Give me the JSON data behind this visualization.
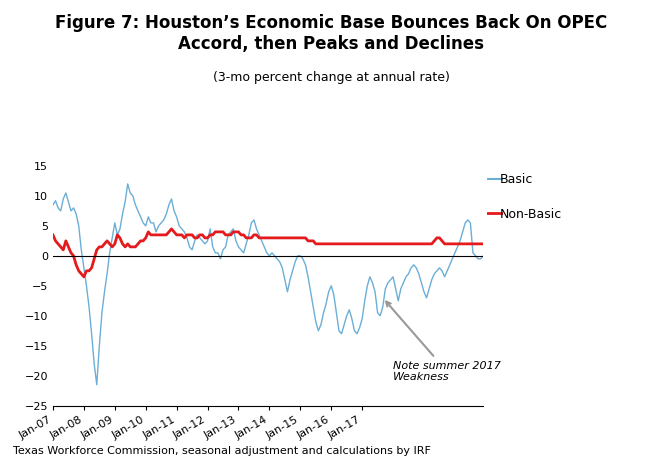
{
  "title": "Figure 7: Houston’s Economic Base Bounces Back On OPEC\nAccord, then Peaks and Declines",
  "subtitle": "(3-mo percent change at annual rate)",
  "footnote": "Texas Workforce Commission, seasonal adjustment and calculations by IRF",
  "annotation": "Note summer 2017\nWeakness",
  "ylim": [
    -25,
    15
  ],
  "yticks": [
    -25,
    -20,
    -15,
    -10,
    -5,
    0,
    5,
    10,
    15
  ],
  "basic_color": "#6baed6",
  "nonbasic_color": "#e41a1c",
  "arrow_color": "#999999",
  "background_color": "#ffffff",
  "basic_label": "Basic",
  "nonbasic_label": "Non-Basic",
  "x_tick_labels": [
    "Jan-07",
    "Jan-08",
    "Jan-09",
    "Jan-10",
    "Jan-11",
    "Jan-12",
    "Jan-13",
    "Jan-14",
    "Jan-15",
    "Jan-16",
    "Jan-17"
  ],
  "basic": [
    8.5,
    9.2,
    8.0,
    7.5,
    9.5,
    10.5,
    9.0,
    7.5,
    8.0,
    7.0,
    5.0,
    1.0,
    -2.0,
    -5.0,
    -8.5,
    -13.0,
    -18.0,
    -21.5,
    -15.0,
    -9.5,
    -6.0,
    -3.0,
    0.5,
    3.0,
    5.5,
    3.5,
    4.5,
    7.0,
    9.0,
    12.0,
    10.5,
    10.0,
    8.5,
    7.5,
    6.5,
    5.5,
    5.0,
    6.5,
    5.5,
    5.5,
    4.0,
    5.0,
    5.5,
    6.0,
    7.0,
    8.5,
    9.5,
    7.5,
    6.5,
    5.0,
    4.5,
    4.0,
    3.0,
    1.5,
    1.0,
    2.5,
    3.5,
    3.0,
    2.5,
    2.0,
    2.5,
    4.5,
    1.5,
    0.5,
    0.5,
    -0.5,
    1.0,
    1.5,
    3.5,
    4.0,
    4.5,
    2.5,
    1.5,
    1.0,
    0.5,
    2.0,
    3.5,
    5.5,
    6.0,
    4.5,
    3.5,
    2.5,
    1.5,
    0.5,
    0.0,
    0.5,
    0.0,
    -0.5,
    -1.0,
    -2.0,
    -4.0,
    -6.0,
    -4.0,
    -2.5,
    -1.0,
    0.0,
    0.0,
    -0.5,
    -1.5,
    -3.5,
    -6.0,
    -8.5,
    -11.0,
    -12.5,
    -11.5,
    -9.5,
    -8.0,
    -6.0,
    -5.0,
    -6.5,
    -9.5,
    -12.5,
    -13.0,
    -11.5,
    -10.0,
    -9.0,
    -10.5,
    -12.5,
    -13.0,
    -12.0,
    -10.5,
    -7.5,
    -5.0,
    -3.5,
    -4.5,
    -6.0,
    -9.5,
    -10.0,
    -8.5,
    -5.5,
    -4.5,
    -4.0,
    -3.5,
    -5.5,
    -7.5,
    -5.5,
    -4.5,
    -3.5,
    -3.0,
    -2.0,
    -1.5,
    -2.0,
    -3.0,
    -4.5,
    -6.0,
    -7.0,
    -5.5,
    -4.0,
    -3.0,
    -2.5,
    -2.0,
    -2.5,
    -3.5,
    -2.5,
    -1.5,
    -0.5,
    0.5,
    1.5,
    2.5,
    4.0,
    5.5,
    6.0,
    5.5,
    0.5,
    0.0,
    -0.5,
    -0.5,
    0.0
  ],
  "nonbasic": [
    3.5,
    2.5,
    2.0,
    1.5,
    1.0,
    2.5,
    1.5,
    0.5,
    0.0,
    -1.5,
    -2.5,
    -3.0,
    -3.5,
    -2.5,
    -2.5,
    -2.0,
    -0.5,
    1.0,
    1.5,
    1.5,
    2.0,
    2.5,
    2.0,
    1.5,
    2.0,
    3.5,
    3.0,
    2.0,
    1.5,
    2.0,
    1.5,
    1.5,
    1.5,
    2.0,
    2.5,
    2.5,
    3.0,
    4.0,
    3.5,
    3.5,
    3.5,
    3.5,
    3.5,
    3.5,
    3.5,
    4.0,
    4.5,
    4.0,
    3.5,
    3.5,
    3.5,
    3.0,
    3.5,
    3.5,
    3.5,
    3.0,
    3.0,
    3.5,
    3.5,
    3.0,
    3.0,
    3.5,
    3.5,
    4.0,
    4.0,
    4.0,
    4.0,
    3.5,
    3.5,
    3.5,
    4.0,
    4.0,
    4.0,
    3.5,
    3.5,
    3.0,
    3.0,
    3.0,
    3.5,
    3.5,
    3.0,
    3.0,
    3.0,
    3.0,
    3.0,
    3.0,
    3.0,
    3.0,
    3.0,
    3.0,
    3.0,
    3.0,
    3.0,
    3.0,
    3.0,
    3.0,
    3.0,
    3.0,
    3.0,
    2.5,
    2.5,
    2.5,
    2.0,
    2.0,
    2.0,
    2.0,
    2.0,
    2.0,
    2.0,
    2.0,
    2.0,
    2.0,
    2.0,
    2.0,
    2.0,
    2.0,
    2.0,
    2.0,
    2.0,
    2.0,
    2.0,
    2.0,
    2.0,
    2.0,
    2.0,
    2.0,
    2.0,
    2.0,
    2.0,
    2.0,
    2.0,
    2.0,
    2.0,
    2.0,
    2.0,
    2.0,
    2.0,
    2.0,
    2.0,
    2.0,
    2.0,
    2.0,
    2.0,
    2.0,
    2.0,
    2.0,
    2.0,
    2.0,
    2.5,
    3.0,
    3.0,
    2.5,
    2.0,
    2.0,
    2.0,
    2.0,
    2.0,
    2.0,
    2.0,
    2.0,
    2.0,
    2.0,
    2.0,
    2.0,
    2.0,
    2.0,
    2.0,
    2.0
  ]
}
